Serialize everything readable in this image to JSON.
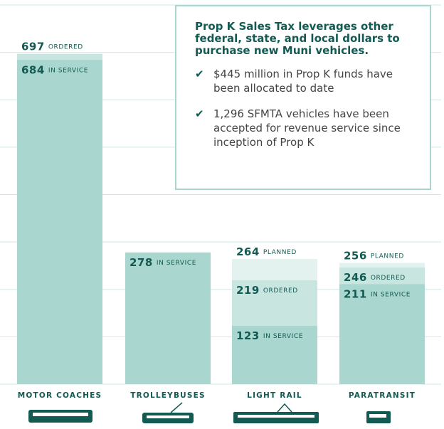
{
  "chart_data": {
    "type": "bar",
    "categories": [
      "MOTOR COACHES",
      "TROLLEYBUSES",
      "LIGHT RAIL",
      "PARATRANSIT"
    ],
    "series": [
      {
        "name": "IN SERVICE",
        "color": "#a9d6cf",
        "values": [
          684,
          278,
          123,
          211
        ]
      },
      {
        "name": "ORDERED",
        "color": "#c8e5e0",
        "values": [
          697,
          null,
          219,
          246
        ]
      },
      {
        "name": "PLANNED",
        "color": "#e3f1ef",
        "values": [
          null,
          null,
          264,
          256
        ]
      }
    ],
    "ylim": [
      0,
      800
    ],
    "yticks": [
      0,
      100,
      200,
      300,
      400,
      500,
      600,
      700,
      800
    ],
    "grid": true,
    "note": {
      "title": "Prop K Sales Tax leverages other federal, state, and local dollars to purchase new Muni vehicles.",
      "bullets": [
        "$445 million in Prop K funds have been allocated to date",
        "1,296 SFMTA vehicles have been accepted for revenue service since inception of Prop K"
      ]
    }
  }
}
